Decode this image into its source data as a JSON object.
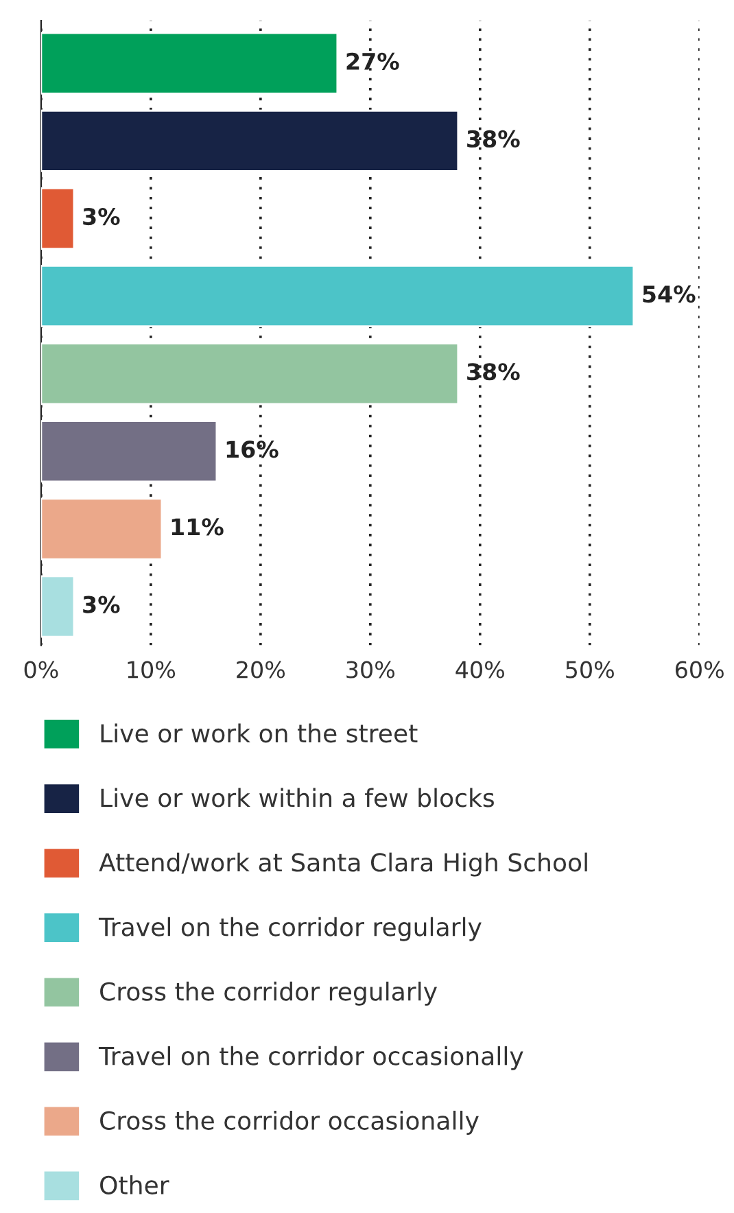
{
  "chart_data": {
    "type": "bar",
    "orientation": "horizontal",
    "categories": [
      null,
      null,
      null,
      null,
      null,
      null,
      null,
      null
    ],
    "series": [
      {
        "name": "Live or work on the street",
        "color": "#00a05a",
        "values": [
          27,
          null,
          null,
          null,
          null,
          null,
          null,
          null
        ],
        "value_labels": [
          "27%",
          null,
          null,
          null,
          null,
          null,
          null,
          null
        ]
      },
      {
        "name": "Live or work within a few blocks",
        "color": "#172345",
        "values": [
          null,
          38,
          null,
          null,
          null,
          null,
          null,
          null
        ],
        "value_labels": [
          null,
          "38%",
          null,
          null,
          null,
          null,
          null,
          null
        ]
      },
      {
        "name": "Attend/work at Santa Clara High School",
        "color": "#e05a35",
        "values": [
          null,
          null,
          3,
          null,
          null,
          null,
          null,
          null
        ],
        "value_labels": [
          null,
          null,
          "3%",
          null,
          null,
          null,
          null,
          null
        ]
      },
      {
        "name": "Travel on the corridor regularly",
        "color": "#4cc4c8",
        "values": [
          null,
          null,
          null,
          54,
          null,
          null,
          null,
          null
        ],
        "value_labels": [
          null,
          null,
          null,
          "54%",
          null,
          null,
          null,
          null
        ]
      },
      {
        "name": "Cross the corridor regularly",
        "color": "#93c5a0",
        "values": [
          null,
          null,
          null,
          null,
          38,
          null,
          null,
          null
        ],
        "value_labels": [
          null,
          null,
          null,
          null,
          "38%",
          null,
          null,
          null
        ]
      },
      {
        "name": "Travel on the corridor occasionally",
        "color": "#736f85",
        "values": [
          null,
          null,
          null,
          null,
          null,
          16,
          null,
          null
        ],
        "value_labels": [
          null,
          null,
          null,
          null,
          null,
          "16%",
          null,
          null
        ]
      },
      {
        "name": "Cross the corridor occasionally",
        "color": "#eba88a",
        "values": [
          null,
          null,
          null,
          null,
          null,
          null,
          11,
          null
        ],
        "value_labels": [
          null,
          null,
          null,
          null,
          null,
          null,
          "11%",
          null
        ]
      },
      {
        "name": "Other",
        "color": "#a8dfe0",
        "values": [
          null,
          null,
          null,
          null,
          null,
          null,
          null,
          3
        ],
        "value_labels": [
          null,
          null,
          null,
          null,
          null,
          null,
          null,
          "3%"
        ]
      }
    ],
    "xlim": [
      0,
      60
    ],
    "xticks": [
      {
        "value": 0,
        "label": "0%"
      },
      {
        "value": 10,
        "label": "10%"
      },
      {
        "value": 20,
        "label": "20%"
      },
      {
        "value": 30,
        "label": "30%"
      },
      {
        "value": 40,
        "label": "40%"
      },
      {
        "value": 50,
        "label": "50%"
      },
      {
        "value": 60,
        "label": "60%"
      }
    ],
    "grid": "x",
    "legend": "bottom",
    "tick_labels": "x"
  }
}
